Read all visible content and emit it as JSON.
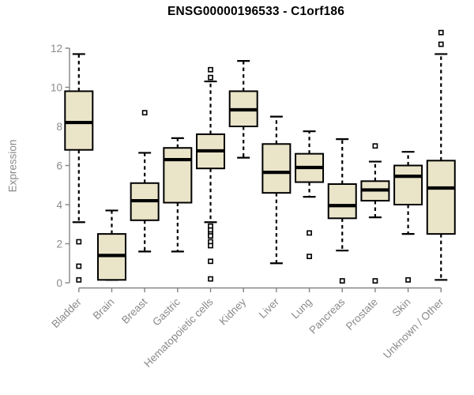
{
  "chart_data": {
    "type": "box",
    "title": "ENSG00000196533 - C1orf186",
    "ylabel": "Expression",
    "xlabel": "",
    "ylim": [
      0,
      13
    ],
    "yticks": [
      0,
      2,
      4,
      6,
      8,
      10,
      12
    ],
    "grid": false,
    "legend": "none",
    "categories": [
      "Bladder",
      "Brain",
      "Breast",
      "Gastric",
      "Hematopoietic cells",
      "Kidney",
      "Liver",
      "Lung",
      "Pancreas",
      "Prostate",
      "Skin",
      "Unknown / Other"
    ],
    "series": [
      {
        "name": "Bladder",
        "whisker_low": 3.1,
        "q1": 6.8,
        "median": 8.2,
        "q3": 9.8,
        "whisker_high": 11.7,
        "outliers": [
          2.1,
          0.85,
          0.15
        ]
      },
      {
        "name": "Brain",
        "whisker_low": 0.15,
        "q1": 0.15,
        "median": 1.4,
        "q3": 2.5,
        "whisker_high": 3.7,
        "outliers": []
      },
      {
        "name": "Breast",
        "whisker_low": 1.6,
        "q1": 3.2,
        "median": 4.2,
        "q3": 5.1,
        "whisker_high": 6.65,
        "outliers": [
          8.7
        ]
      },
      {
        "name": "Gastric",
        "whisker_low": 1.6,
        "q1": 4.1,
        "median": 6.3,
        "q3": 6.9,
        "whisker_high": 7.4,
        "outliers": []
      },
      {
        "name": "Hematopoietic cells",
        "whisker_low": 3.1,
        "q1": 5.85,
        "median": 6.75,
        "q3": 7.6,
        "whisker_high": 10.3,
        "outliers": [
          10.9,
          10.5,
          2.9,
          2.7,
          2.5,
          2.4,
          2.1,
          1.9,
          1.1,
          0.2
        ]
      },
      {
        "name": "Kidney",
        "whisker_low": 6.4,
        "q1": 8.0,
        "median": 8.85,
        "q3": 9.8,
        "whisker_high": 11.35,
        "outliers": []
      },
      {
        "name": "Liver",
        "whisker_low": 1.0,
        "q1": 4.6,
        "median": 5.65,
        "q3": 7.1,
        "whisker_high": 8.5,
        "outliers": []
      },
      {
        "name": "Lung",
        "whisker_low": 4.4,
        "q1": 5.15,
        "median": 5.9,
        "q3": 6.6,
        "whisker_high": 7.75,
        "outliers": [
          2.55,
          1.35
        ]
      },
      {
        "name": "Pancreas",
        "whisker_low": 1.65,
        "q1": 3.3,
        "median": 3.95,
        "q3": 5.05,
        "whisker_high": 7.35,
        "outliers": [
          0.1
        ]
      },
      {
        "name": "Prostate",
        "whisker_low": 3.35,
        "q1": 4.2,
        "median": 4.75,
        "q3": 5.2,
        "whisker_high": 6.2,
        "outliers": [
          7.0,
          0.1
        ]
      },
      {
        "name": "Skin",
        "whisker_low": 2.5,
        "q1": 4.0,
        "median": 5.45,
        "q3": 6.0,
        "whisker_high": 6.7,
        "outliers": [
          0.15
        ]
      },
      {
        "name": "Unknown / Other",
        "whisker_low": 0.15,
        "q1": 2.5,
        "median": 4.85,
        "q3": 6.25,
        "whisker_high": 11.7,
        "outliers": [
          12.8,
          12.2
        ]
      }
    ],
    "colors": {
      "box_fill": "#EAE4C9",
      "box_border": "#000000",
      "median": "#000000",
      "whisker": "#000000",
      "outlier_stroke": "#000000",
      "outlier_fill": "#FFFFFF",
      "axis": "#848484",
      "tick_text": "#8A8A8A",
      "title_text": "#000000",
      "background": "#FFFFFF"
    }
  }
}
